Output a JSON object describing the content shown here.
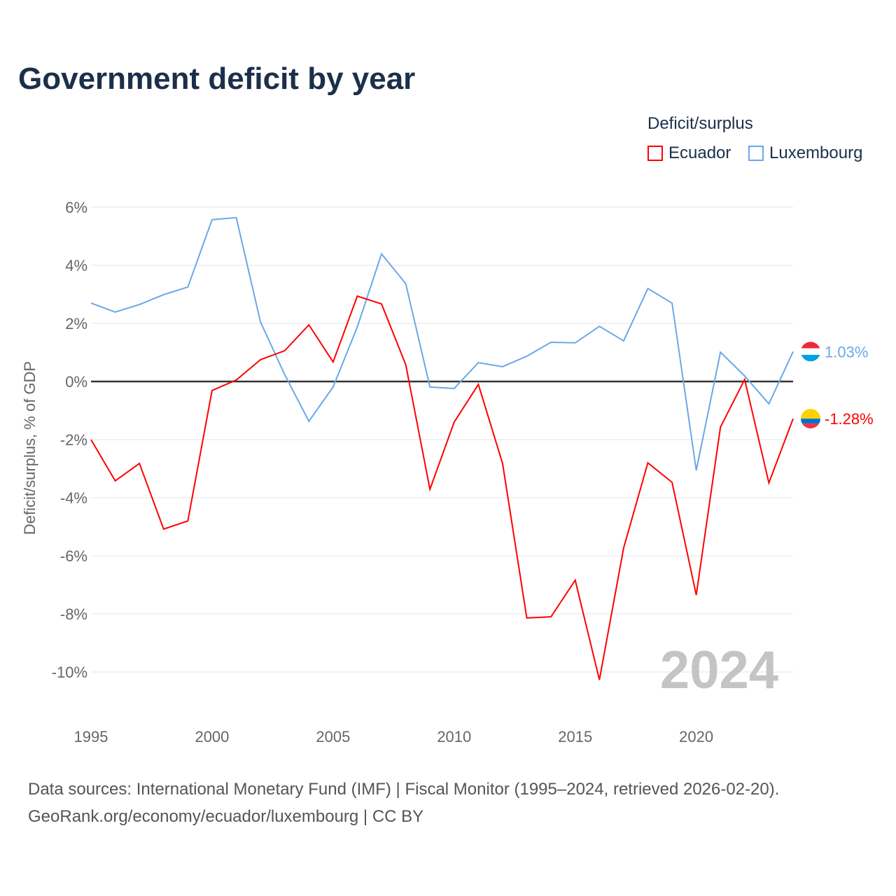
{
  "chart_data": {
    "type": "line",
    "title": "Government deficit by year",
    "ylabel": "Deficit/surplus, % of GDP",
    "xlabel": "",
    "ylim": [
      -11,
      6
    ],
    "xlim": [
      1995,
      2024
    ],
    "yticks": [
      6,
      4,
      2,
      0,
      -2,
      -4,
      -6,
      -8,
      -10
    ],
    "ytick_labels": [
      "6%",
      "4%",
      "2%",
      "0%",
      "-2%",
      "-4%",
      "-6%",
      "-8%",
      "-10%"
    ],
    "xticks": [
      1995,
      2000,
      2005,
      2010,
      2015,
      2020
    ],
    "xtick_labels": [
      "1995",
      "2000",
      "2005",
      "2010",
      "2015",
      "2020"
    ],
    "grid": true,
    "legend_title": "Deficit/surplus",
    "legend_position": "top-right",
    "watermark_year": "2024",
    "x": [
      1995,
      1996,
      1997,
      1998,
      1999,
      2000,
      2001,
      2002,
      2003,
      2004,
      2005,
      2006,
      2007,
      2008,
      2009,
      2010,
      2011,
      2012,
      2013,
      2014,
      2015,
      2016,
      2017,
      2018,
      2019,
      2020,
      2021,
      2022,
      2023,
      2024
    ],
    "series": [
      {
        "name": "Ecuador",
        "color": "#ff0000",
        "end_label": "-1.28%",
        "values": [
          -2.0,
          -3.42,
          -2.82,
          -5.08,
          -4.8,
          -0.31,
          0.05,
          0.75,
          1.06,
          1.95,
          0.67,
          2.94,
          2.67,
          0.58,
          -3.71,
          -1.4,
          -0.1,
          -2.82,
          -8.14,
          -8.1,
          -6.84,
          -10.27,
          -5.73,
          -2.8,
          -3.47,
          -7.35,
          -1.57,
          0.07,
          -3.49,
          -1.28
        ]
      },
      {
        "name": "Luxembourg",
        "color": "#6aa8e8",
        "end_label": "1.03%",
        "values": [
          2.7,
          2.39,
          2.65,
          2.99,
          3.25,
          5.57,
          5.64,
          2.05,
          0.24,
          -1.37,
          -0.19,
          1.88,
          4.39,
          3.37,
          -0.19,
          -0.24,
          0.65,
          0.51,
          0.87,
          1.35,
          1.33,
          1.9,
          1.4,
          3.2,
          2.7,
          -3.06,
          1.01,
          0.19,
          -0.77,
          1.03
        ]
      }
    ]
  },
  "footer": {
    "line1": "Data sources: International Monetary Fund (IMF) | Fiscal Monitor (1995–2024, retrieved 2026-02-20).",
    "line2": "GeoRank.org/economy/ecuador/luxembourg | CC BY"
  }
}
